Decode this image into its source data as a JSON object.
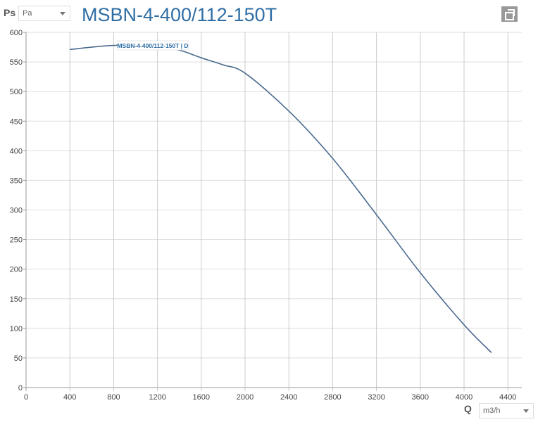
{
  "header": {
    "y_label": "Ps",
    "y_unit": "Pa",
    "title": "MSBN-4-400/112-150T",
    "copy_icon": "copy-icon"
  },
  "footer": {
    "x_label": "Q",
    "x_unit": "m3/h"
  },
  "chart_data": {
    "type": "line",
    "title": "MSBN-4-400/112-150T",
    "xlabel": "Q",
    "ylabel": "Ps",
    "xlim": [
      0,
      4400
    ],
    "ylim": [
      0,
      600
    ],
    "xticks": [
      0,
      400,
      800,
      1200,
      1600,
      2000,
      2400,
      2800,
      3200,
      3600,
      4000,
      4400
    ],
    "yticks": [
      0,
      50,
      100,
      150,
      200,
      250,
      300,
      350,
      400,
      450,
      500,
      550,
      600
    ],
    "grid": true,
    "series": [
      {
        "name": "MSBN-4-400/112-150T | D",
        "color": "#4a6a8f",
        "x": [
          400,
          800,
          1200,
          1400,
          1600,
          1800,
          2000,
          2400,
          2800,
          3200,
          3600,
          4000,
          4250
        ],
        "y": [
          571,
          578,
          576,
          570,
          557,
          545,
          531,
          467,
          387,
          292,
          194,
          106,
          59
        ]
      }
    ]
  }
}
